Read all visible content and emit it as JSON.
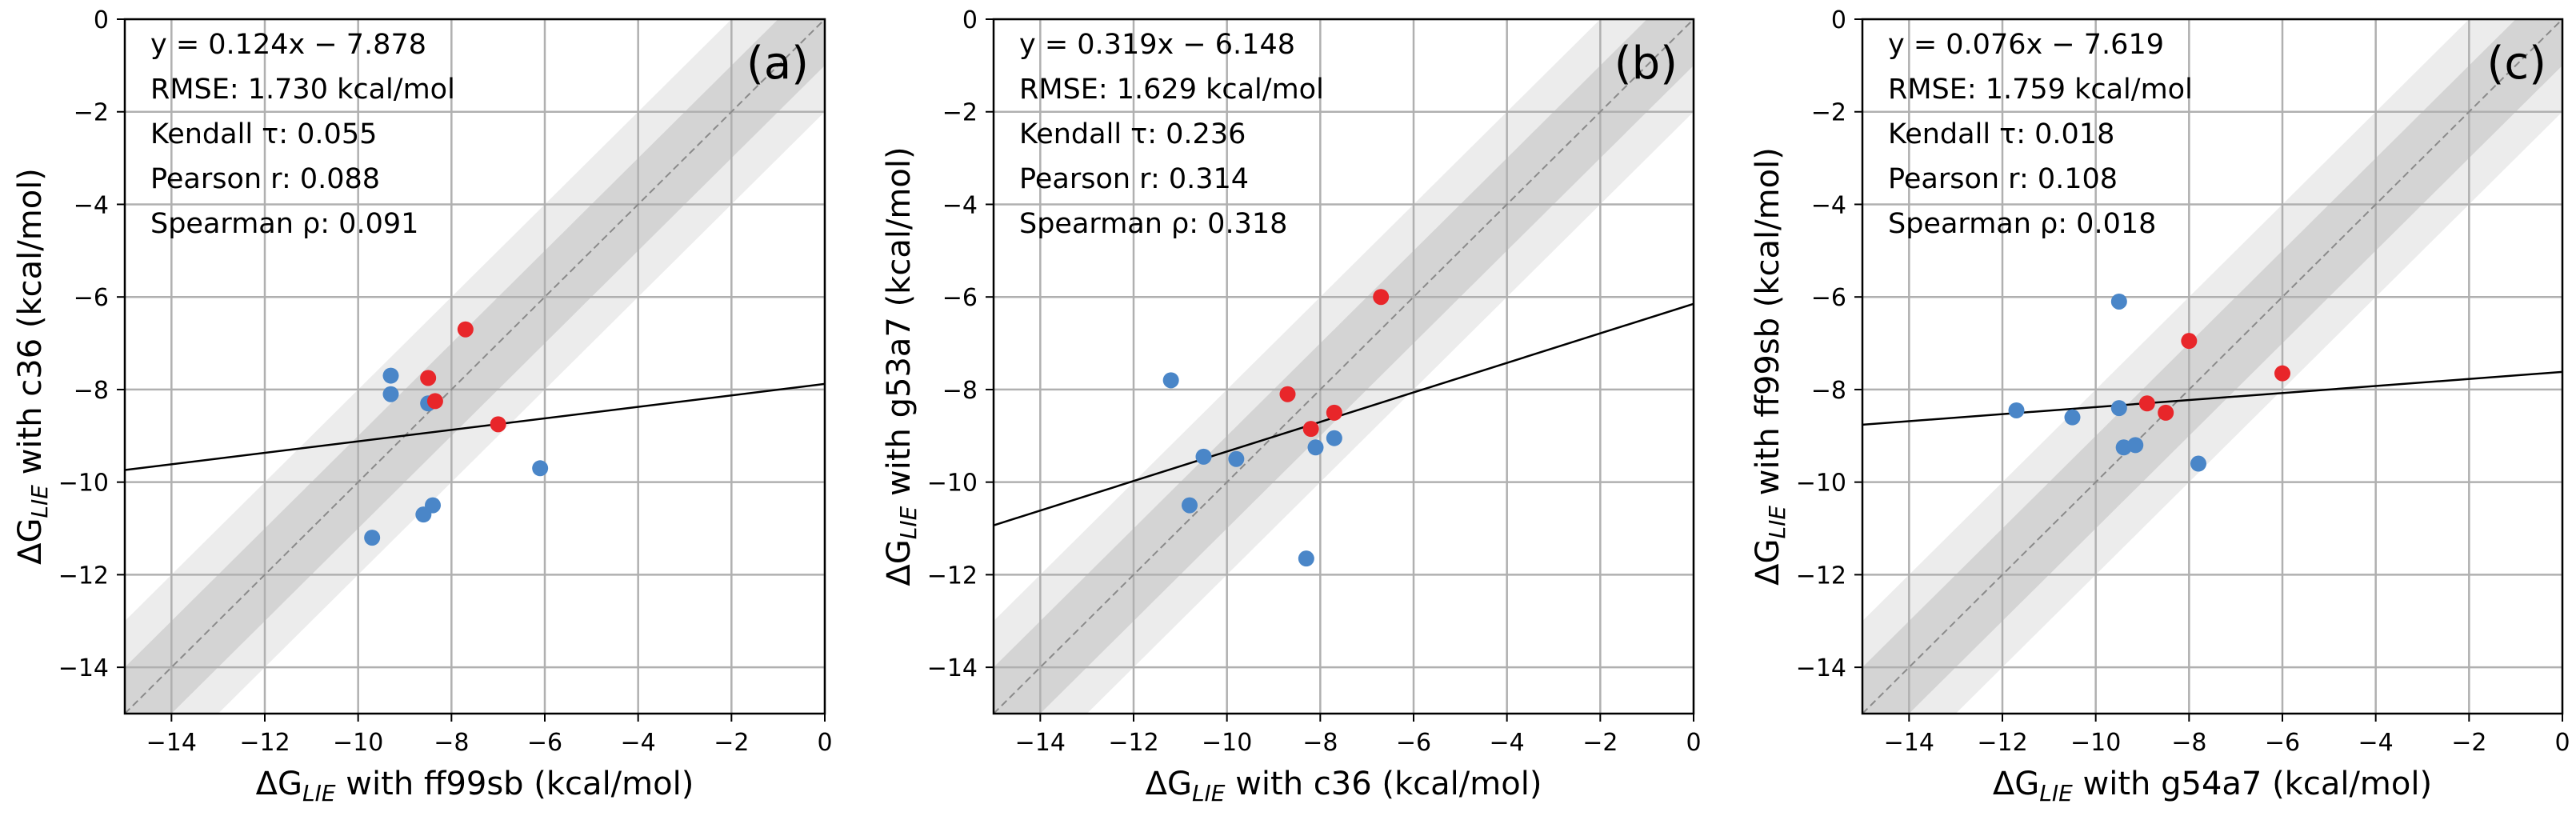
{
  "colors": {
    "blue_points": "#4a86c8",
    "red_points": "#e8262a",
    "band_outer": "#ececec",
    "band_inner": "#d4d4d4",
    "grid": "#b0b0b0",
    "identity_line": "#8a8a8a",
    "fit_line": "#000000"
  },
  "chart_data": [
    {
      "type": "scatter",
      "panel_label": "(a)",
      "xlabel": {
        "prefix": "ΔG",
        "sub": "LIE",
        "suffix": " with ff99sb (kcal/mol)"
      },
      "ylabel": {
        "prefix": "ΔG",
        "sub": "LIE",
        "suffix": " with c36 (kcal/mol)"
      },
      "xlim": [
        -15,
        0
      ],
      "ylim": [
        -15,
        0
      ],
      "xticks": [
        "−14",
        "−12",
        "−10",
        "−8",
        "−6",
        "−4",
        "−2",
        "0"
      ],
      "yticks": [
        "−14",
        "−12",
        "−10",
        "−8",
        "−6",
        "−4",
        "−2",
        "0"
      ],
      "grid": true,
      "fit": {
        "slope": 0.124,
        "intercept": -7.878
      },
      "annotations": [
        "y = 0.124x − 7.878",
        "RMSE: 1.730 kcal/mol",
        "Kendall τ: 0.055",
        "Pearson r: 0.088",
        "Spearman ρ: 0.091"
      ],
      "series": [
        {
          "name": "blue",
          "x": [
            -9.3,
            -9.3,
            -8.5,
            -8.4,
            -8.6,
            -9.7,
            -6.1
          ],
          "y": [
            -7.7,
            -8.1,
            -8.3,
            -10.5,
            -10.7,
            -11.2,
            -9.7
          ]
        },
        {
          "name": "red",
          "x": [
            -7.7,
            -8.5,
            -8.35,
            -7.0
          ],
          "y": [
            -6.7,
            -7.75,
            -8.25,
            -8.75
          ]
        }
      ]
    },
    {
      "type": "scatter",
      "panel_label": "(b)",
      "xlabel": {
        "prefix": "ΔG",
        "sub": "LIE",
        "suffix": " with c36 (kcal/mol)"
      },
      "ylabel": {
        "prefix": "ΔG",
        "sub": "LIE",
        "suffix": " with g53a7 (kcal/mol)"
      },
      "xlim": [
        -15,
        0
      ],
      "ylim": [
        -15,
        0
      ],
      "xticks": [
        "−14",
        "−12",
        "−10",
        "−8",
        "−6",
        "−4",
        "−2",
        "0"
      ],
      "yticks": [
        "−14",
        "−12",
        "−10",
        "−8",
        "−6",
        "−4",
        "−2",
        "0"
      ],
      "grid": true,
      "fit": {
        "slope": 0.319,
        "intercept": -6.148
      },
      "annotations": [
        "y = 0.319x − 6.148",
        "RMSE: 1.629 kcal/mol",
        "Kendall τ: 0.236",
        "Pearson r: 0.314",
        "Spearman ρ: 0.318"
      ],
      "series": [
        {
          "name": "blue",
          "x": [
            -11.2,
            -10.5,
            -9.8,
            -10.8,
            -8.1,
            -7.7,
            -8.3
          ],
          "y": [
            -7.8,
            -9.45,
            -9.5,
            -10.5,
            -9.25,
            -9.05,
            -11.65
          ]
        },
        {
          "name": "red",
          "x": [
            -6.7,
            -8.7,
            -7.7,
            -8.2
          ],
          "y": [
            -6.0,
            -8.1,
            -8.5,
            -8.85
          ]
        }
      ]
    },
    {
      "type": "scatter",
      "panel_label": "(c)",
      "xlabel": {
        "prefix": "ΔG",
        "sub": "LIE",
        "suffix": " with g54a7 (kcal/mol)"
      },
      "ylabel": {
        "prefix": "ΔG",
        "sub": "LIE",
        "suffix": " with ff99sb (kcal/mol)"
      },
      "xlim": [
        -15,
        0
      ],
      "ylim": [
        -15,
        0
      ],
      "xticks": [
        "−14",
        "−12",
        "−10",
        "−8",
        "−6",
        "−4",
        "−2",
        "0"
      ],
      "yticks": [
        "−14",
        "−12",
        "−10",
        "−8",
        "−6",
        "−4",
        "−2",
        "0"
      ],
      "grid": true,
      "fit": {
        "slope": 0.076,
        "intercept": -7.619
      },
      "annotations": [
        "y = 0.076x − 7.619",
        "RMSE: 1.759 kcal/mol",
        "Kendall τ: 0.018",
        "Pearson r: 0.108",
        "Spearman ρ: 0.018"
      ],
      "series": [
        {
          "name": "blue",
          "x": [
            -9.5,
            -11.7,
            -10.5,
            -9.5,
            -9.4,
            -9.15,
            -7.8
          ],
          "y": [
            -6.1,
            -8.45,
            -8.6,
            -8.4,
            -9.25,
            -9.2,
            -9.6
          ]
        },
        {
          "name": "red",
          "x": [
            -8.0,
            -6.0,
            -8.9,
            -8.5
          ],
          "y": [
            -6.95,
            -7.65,
            -8.3,
            -8.5
          ]
        }
      ]
    }
  ]
}
